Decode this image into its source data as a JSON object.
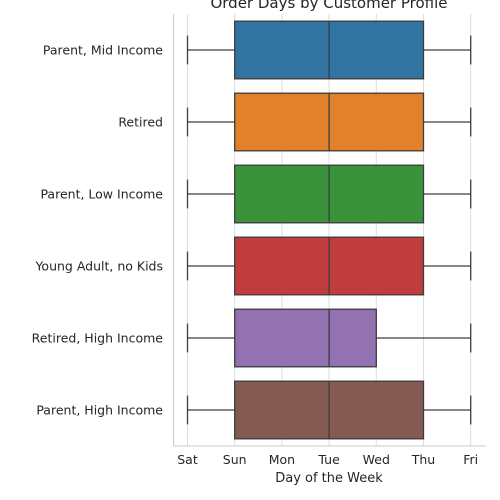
{
  "chart_data": {
    "type": "boxplot",
    "orientation": "horizontal",
    "title": "Order Days by Customer Profile",
    "xlabel": "Day of the Week",
    "ylabel": "",
    "x_ticks": [
      {
        "value": 0,
        "label": "Sat"
      },
      {
        "value": 1,
        "label": "Sun"
      },
      {
        "value": 2,
        "label": "Mon"
      },
      {
        "value": 3,
        "label": "Tue"
      },
      {
        "value": 4,
        "label": "Wed"
      },
      {
        "value": 5,
        "label": "Thu"
      },
      {
        "value": 6,
        "label": "Fri"
      }
    ],
    "xlim": [
      -0.3,
      6.3
    ],
    "grid": "vertical",
    "series": [
      {
        "category": "Parent, Mid Income",
        "min": 0,
        "q1": 1,
        "median": 3,
        "q3": 5,
        "max": 6,
        "color": "#3274a1"
      },
      {
        "category": "Retired",
        "min": 0,
        "q1": 1,
        "median": 3,
        "q3": 5,
        "max": 6,
        "color": "#e1812c"
      },
      {
        "category": "Parent, Low Income",
        "min": 0,
        "q1": 1,
        "median": 3,
        "q3": 5,
        "max": 6,
        "color": "#3a923a"
      },
      {
        "category": "Young Adult, no Kids",
        "min": 0,
        "q1": 1,
        "median": 3,
        "q3": 5,
        "max": 6,
        "color": "#c03d3e"
      },
      {
        "category": "Retired, High Income",
        "min": 0,
        "q1": 1,
        "median": 3,
        "q3": 4,
        "max": 6,
        "color": "#9372b2"
      },
      {
        "category": "Parent, High Income",
        "min": 0,
        "q1": 1,
        "median": 3,
        "q3": 5,
        "max": 6,
        "color": "#845b53"
      }
    ]
  }
}
